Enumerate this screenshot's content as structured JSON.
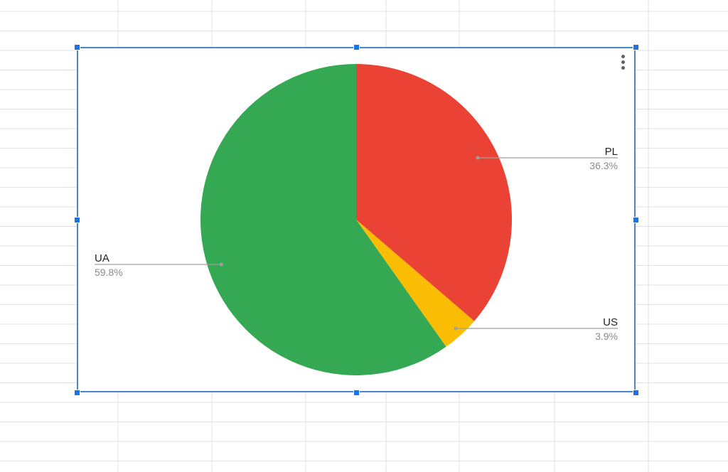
{
  "chart_data": {
    "type": "pie",
    "categories": [
      "PL",
      "US",
      "UA"
    ],
    "values": [
      36.3,
      3.9,
      59.8
    ],
    "labels": [
      "36.3%",
      "3.9%",
      "59.8%"
    ],
    "colors": [
      "#ea4335",
      "#fbbc04",
      "#34a853"
    ],
    "title": "",
    "legend": "labeled slices"
  },
  "toolbar": {
    "menu_icon": "more-vert-icon"
  },
  "selection": {
    "handle_color": "#1a73e8",
    "border_color": "#4a86d0"
  }
}
